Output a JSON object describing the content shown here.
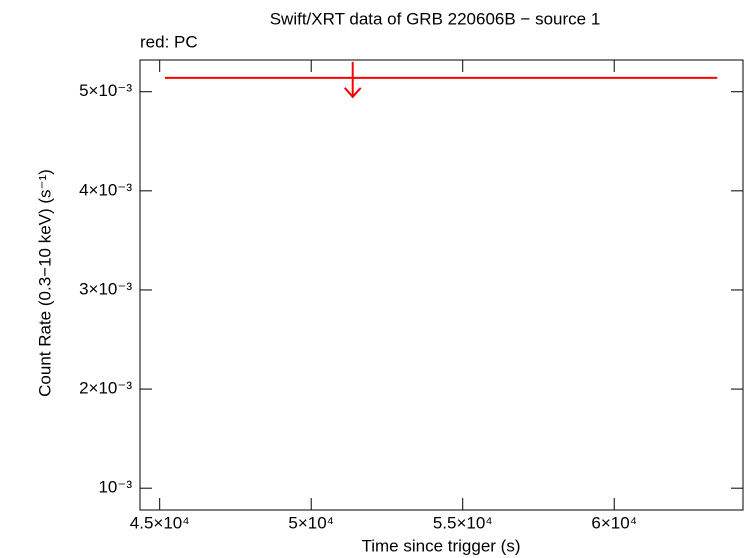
{
  "chart_data": {
    "type": "scatter",
    "title": "Swift/XRT data of GRB 220606B − source 1",
    "subtitle": "red: PC",
    "x_label": "Time since trigger (s)",
    "y_label": "Count Rate (0.3−10 keV) (s⁻¹)",
    "xlim": [
      44350,
      64250
    ],
    "ylim": [
      0.00078,
      0.00532
    ],
    "xticks": [
      {
        "value": 45000,
        "label": "4.5×10⁴"
      },
      {
        "value": 50000,
        "label": "5×10⁴"
      },
      {
        "value": 55000,
        "label": "5.5×10⁴"
      },
      {
        "value": 60000,
        "label": "6×10⁴"
      }
    ],
    "yticks": [
      {
        "value": 0.001,
        "label": "10⁻³"
      },
      {
        "value": 0.002,
        "label": "2×10⁻³"
      },
      {
        "value": 0.003,
        "label": "3×10⁻³"
      },
      {
        "value": 0.004,
        "label": "4×10⁻³"
      },
      {
        "value": 0.005,
        "label": "5×10⁻³"
      }
    ],
    "series": [
      {
        "color": "#ff0000",
        "upper_limit": true,
        "x": [
          51370
        ],
        "x_low": [
          45170
        ],
        "x_high": [
          63400
        ],
        "values": [
          0.00514
        ]
      }
    ]
  }
}
